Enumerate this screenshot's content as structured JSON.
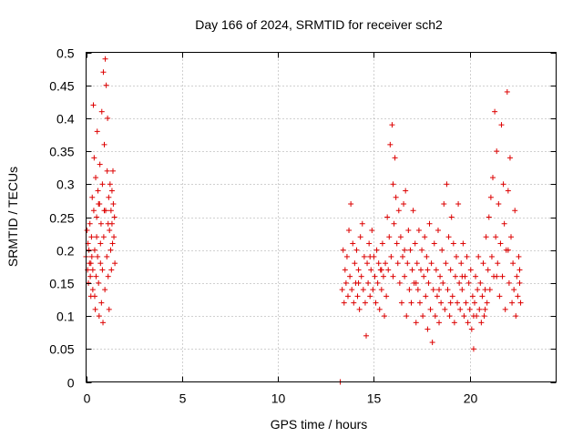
{
  "chart_data": {
    "type": "scatter",
    "title": "Day 166 of 2024, SRMTID for receiver sch2",
    "xlabel": "GPS time / hours",
    "ylabel": "SRMTID / TECUs",
    "xlim": [
      0,
      24.5
    ],
    "ylim": [
      0,
      0.5
    ],
    "xticks": [
      0,
      5,
      10,
      15,
      20
    ],
    "xtick_labels": [
      "0",
      "5",
      "10",
      "15",
      "20"
    ],
    "yticks": [
      0,
      0.05,
      0.1,
      0.15,
      0.2,
      0.25,
      0.3,
      0.35,
      0.4,
      0.45,
      0.5
    ],
    "ytick_labels": [
      "0",
      "0.05",
      "0.1",
      "0.15",
      "0.2",
      "0.25",
      "0.3",
      "0.35",
      "0.4",
      "0.45",
      "0.5"
    ],
    "grid": true,
    "marker": "plus",
    "color": "#dd0000",
    "series": [
      {
        "name": "SRMTID",
        "points": [
          [
            0.0,
            0.19
          ],
          [
            0.05,
            0.23
          ],
          [
            0.08,
            0.17
          ],
          [
            0.1,
            0.21
          ],
          [
            0.12,
            0.15
          ],
          [
            0.15,
            0.2
          ],
          [
            0.18,
            0.18
          ],
          [
            0.2,
            0.24
          ],
          [
            0.22,
            0.16
          ],
          [
            0.25,
            0.13
          ],
          [
            0.28,
            0.22
          ],
          [
            0.3,
            0.19
          ],
          [
            0.32,
            0.28
          ],
          [
            0.35,
            0.14
          ],
          [
            0.38,
            0.42
          ],
          [
            0.4,
            0.26
          ],
          [
            0.42,
            0.34
          ],
          [
            0.45,
            0.2
          ],
          [
            0.48,
            0.11
          ],
          [
            0.5,
            0.31
          ],
          [
            0.52,
            0.16
          ],
          [
            0.55,
            0.22
          ],
          [
            0.58,
            0.38
          ],
          [
            0.6,
            0.19
          ],
          [
            0.62,
            0.29
          ],
          [
            0.65,
            0.15
          ],
          [
            0.68,
            0.1
          ],
          [
            0.7,
            0.27
          ],
          [
            0.72,
            0.33
          ],
          [
            0.75,
            0.18
          ],
          [
            0.78,
            0.24
          ],
          [
            0.8,
            0.12
          ],
          [
            0.82,
            0.41
          ],
          [
            0.85,
            0.3
          ],
          [
            0.88,
            0.09
          ],
          [
            0.9,
            0.47
          ],
          [
            0.92,
            0.22
          ],
          [
            0.95,
            0.36
          ],
          [
            0.98,
            0.14
          ],
          [
            1.0,
            0.49
          ],
          [
            1.02,
            0.26
          ],
          [
            1.05,
            0.45
          ],
          [
            1.08,
            0.19
          ],
          [
            1.1,
            0.32
          ],
          [
            1.12,
            0.4
          ],
          [
            1.15,
            0.16
          ],
          [
            1.18,
            0.28
          ],
          [
            1.2,
            0.11
          ],
          [
            1.22,
            0.23
          ],
          [
            1.25,
            0.3
          ],
          [
            1.28,
            0.2
          ],
          [
            1.3,
            0.26
          ],
          [
            1.32,
            0.17
          ],
          [
            1.35,
            0.24
          ],
          [
            1.38,
            0.21
          ],
          [
            1.4,
            0.32
          ],
          [
            1.42,
            0.27
          ],
          [
            1.45,
            0.22
          ],
          [
            1.48,
            0.25
          ],
          [
            1.5,
            0.18
          ],
          [
            0.35,
            0.17
          ],
          [
            0.55,
            0.25
          ],
          [
            0.75,
            0.21
          ],
          [
            0.95,
            0.26
          ],
          [
            1.15,
            0.24
          ],
          [
            1.35,
            0.29
          ],
          [
            0.25,
            0.18
          ],
          [
            0.45,
            0.13
          ],
          [
            0.65,
            0.27
          ],
          [
            0.85,
            0.17
          ],
          [
            13.25,
            0.0
          ],
          [
            13.35,
            0.14
          ],
          [
            13.4,
            0.2
          ],
          [
            13.45,
            0.12
          ],
          [
            13.5,
            0.17
          ],
          [
            13.55,
            0.15
          ],
          [
            13.6,
            0.19
          ],
          [
            13.65,
            0.13
          ],
          [
            13.7,
            0.23
          ],
          [
            13.75,
            0.16
          ],
          [
            13.8,
            0.27
          ],
          [
            13.85,
            0.14
          ],
          [
            13.9,
            0.21
          ],
          [
            13.95,
            0.12
          ],
          [
            14.0,
            0.18
          ],
          [
            14.05,
            0.15
          ],
          [
            14.1,
            0.2
          ],
          [
            14.15,
            0.13
          ],
          [
            14.2,
            0.17
          ],
          [
            14.25,
            0.11
          ],
          [
            14.3,
            0.22
          ],
          [
            14.35,
            0.16
          ],
          [
            14.4,
            0.24
          ],
          [
            14.45,
            0.14
          ],
          [
            14.5,
            0.19
          ],
          [
            14.55,
            0.12
          ],
          [
            14.6,
            0.07
          ],
          [
            14.65,
            0.18
          ],
          [
            14.7,
            0.15
          ],
          [
            14.75,
            0.21
          ],
          [
            14.8,
            0.13
          ],
          [
            14.85,
            0.17
          ],
          [
            14.9,
            0.23
          ],
          [
            14.95,
            0.14
          ],
          [
            15.0,
            0.19
          ],
          [
            15.05,
            0.16
          ],
          [
            15.1,
            0.12
          ],
          [
            15.15,
            0.2
          ],
          [
            15.2,
            0.15
          ],
          [
            15.25,
            0.18
          ],
          [
            15.3,
            0.11
          ],
          [
            15.35,
            0.17
          ],
          [
            15.4,
            0.14
          ],
          [
            15.45,
            0.21
          ],
          [
            15.5,
            0.16
          ],
          [
            15.55,
            0.1
          ],
          [
            15.6,
            0.18
          ],
          [
            15.65,
            0.13
          ],
          [
            15.7,
            0.25
          ],
          [
            15.75,
            0.17
          ],
          [
            15.8,
            0.22
          ],
          [
            15.85,
            0.36
          ],
          [
            15.9,
            0.19
          ],
          [
            15.95,
            0.39
          ],
          [
            16.0,
            0.3
          ],
          [
            16.05,
            0.24
          ],
          [
            16.1,
            0.34
          ],
          [
            16.15,
            0.28
          ],
          [
            16.2,
            0.21
          ],
          [
            16.25,
            0.18
          ],
          [
            16.3,
            0.26
          ],
          [
            16.35,
            0.15
          ],
          [
            16.4,
            0.22
          ],
          [
            16.45,
            0.12
          ],
          [
            16.5,
            0.19
          ],
          [
            16.55,
            0.27
          ],
          [
            16.6,
            0.16
          ],
          [
            16.65,
            0.29
          ],
          [
            16.7,
            0.1
          ],
          [
            16.75,
            0.18
          ],
          [
            16.8,
            0.23
          ],
          [
            16.85,
            0.14
          ],
          [
            16.9,
            0.2
          ],
          [
            16.95,
            0.12
          ],
          [
            17.0,
            0.17
          ],
          [
            17.05,
            0.26
          ],
          [
            17.1,
            0.15
          ],
          [
            17.15,
            0.21
          ],
          [
            17.2,
            0.09
          ],
          [
            17.25,
            0.18
          ],
          [
            17.3,
            0.14
          ],
          [
            17.35,
            0.23
          ],
          [
            17.4,
            0.12
          ],
          [
            17.45,
            0.17
          ],
          [
            17.5,
            0.2
          ],
          [
            17.55,
            0.1
          ],
          [
            17.6,
            0.16
          ],
          [
            17.65,
            0.22
          ],
          [
            17.7,
            0.13
          ],
          [
            17.75,
            0.19
          ],
          [
            17.8,
            0.08
          ],
          [
            17.85,
            0.15
          ],
          [
            17.9,
            0.24
          ],
          [
            17.95,
            0.11
          ],
          [
            18.0,
            0.18
          ],
          [
            18.05,
            0.06
          ],
          [
            18.1,
            0.14
          ],
          [
            18.15,
            0.21
          ],
          [
            18.2,
            0.1
          ],
          [
            18.25,
            0.17
          ],
          [
            18.3,
            0.13
          ],
          [
            18.35,
            0.23
          ],
          [
            18.4,
            0.09
          ],
          [
            18.45,
            0.16
          ],
          [
            18.5,
            0.12
          ],
          [
            18.55,
            0.2
          ],
          [
            18.6,
            0.15
          ],
          [
            18.65,
            0.27
          ],
          [
            18.7,
            0.11
          ],
          [
            18.75,
            0.18
          ],
          [
            18.8,
            0.3
          ],
          [
            18.85,
            0.14
          ],
          [
            18.9,
            0.22
          ],
          [
            18.95,
            0.1
          ],
          [
            19.0,
            0.17
          ],
          [
            19.05,
            0.25
          ],
          [
            19.1,
            0.13
          ],
          [
            19.15,
            0.21
          ],
          [
            19.2,
            0.09
          ],
          [
            19.25,
            0.16
          ],
          [
            19.3,
            0.19
          ],
          [
            19.35,
            0.12
          ],
          [
            19.4,
            0.27
          ],
          [
            19.45,
            0.15
          ],
          [
            19.5,
            0.11
          ],
          [
            19.55,
            0.18
          ],
          [
            19.6,
            0.14
          ],
          [
            19.65,
            0.21
          ],
          [
            19.7,
            0.1
          ],
          [
            19.75,
            0.16
          ],
          [
            19.8,
            0.12
          ],
          [
            19.85,
            0.19
          ],
          [
            19.9,
            0.09
          ],
          [
            19.95,
            0.15
          ],
          [
            20.0,
            0.11
          ],
          [
            20.05,
            0.17
          ],
          [
            20.1,
            0.08
          ],
          [
            20.15,
            0.13
          ],
          [
            20.2,
            0.05
          ],
          [
            20.25,
            0.12
          ],
          [
            20.3,
            0.16
          ],
          [
            20.35,
            0.1
          ],
          [
            20.4,
            0.14
          ],
          [
            20.45,
            0.19
          ],
          [
            20.5,
            0.11
          ],
          [
            20.55,
            0.15
          ],
          [
            20.6,
            0.09
          ],
          [
            20.65,
            0.13
          ],
          [
            20.7,
            0.18
          ],
          [
            20.75,
            0.1
          ],
          [
            20.8,
            0.14
          ],
          [
            20.85,
            0.22
          ],
          [
            20.9,
            0.12
          ],
          [
            20.95,
            0.17
          ],
          [
            21.0,
            0.25
          ],
          [
            21.05,
            0.14
          ],
          [
            21.1,
            0.28
          ],
          [
            21.15,
            0.19
          ],
          [
            21.2,
            0.31
          ],
          [
            21.25,
            0.16
          ],
          [
            21.3,
            0.41
          ],
          [
            21.35,
            0.22
          ],
          [
            21.4,
            0.35
          ],
          [
            21.45,
            0.18
          ],
          [
            21.5,
            0.27
          ],
          [
            21.55,
            0.13
          ],
          [
            21.6,
            0.21
          ],
          [
            21.65,
            0.39
          ],
          [
            21.7,
            0.16
          ],
          [
            21.75,
            0.3
          ],
          [
            21.8,
            0.24
          ],
          [
            21.85,
            0.11
          ],
          [
            21.9,
            0.2
          ],
          [
            21.95,
            0.44
          ],
          [
            22.0,
            0.29
          ],
          [
            22.05,
            0.15
          ],
          [
            22.1,
            0.34
          ],
          [
            22.15,
            0.22
          ],
          [
            22.2,
            0.12
          ],
          [
            22.25,
            0.18
          ],
          [
            22.3,
            0.14
          ],
          [
            22.35,
            0.26
          ],
          [
            22.4,
            0.1
          ],
          [
            22.45,
            0.16
          ],
          [
            22.5,
            0.13
          ],
          [
            22.55,
            0.19
          ],
          [
            22.6,
            0.15
          ],
          [
            22.65,
            0.12
          ],
          [
            14.2,
            0.15
          ],
          [
            14.8,
            0.19
          ],
          [
            15.4,
            0.17
          ],
          [
            16.0,
            0.16
          ],
          [
            16.6,
            0.2
          ],
          [
            17.2,
            0.15
          ],
          [
            17.8,
            0.17
          ],
          [
            18.4,
            0.14
          ],
          [
            19.0,
            0.12
          ],
          [
            19.6,
            0.16
          ],
          [
            20.2,
            0.1
          ],
          [
            20.8,
            0.11
          ],
          [
            21.4,
            0.16
          ],
          [
            22.0,
            0.2
          ],
          [
            22.6,
            0.17
          ]
        ]
      }
    ]
  }
}
